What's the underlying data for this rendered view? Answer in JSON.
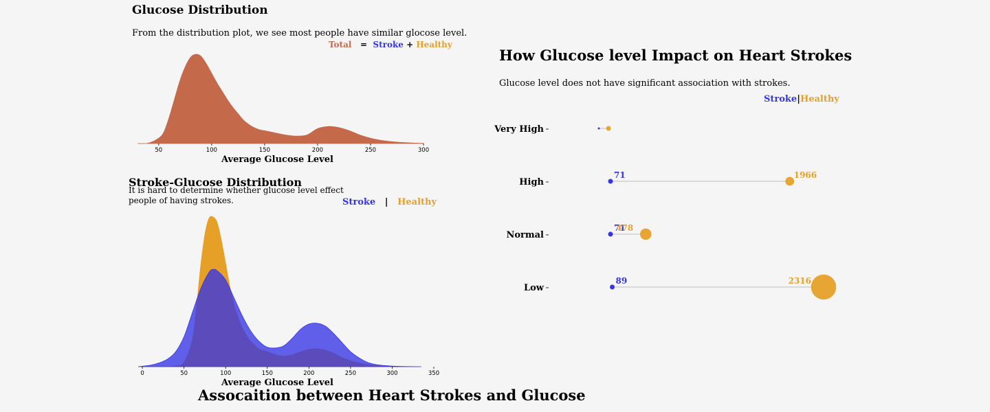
{
  "figure": {
    "suptitle": "Assocaition between Heart Strokes and Glucose"
  },
  "colors": {
    "background": "#f5f5f5",
    "total": "#c4694a",
    "stroke": "#3535e6",
    "healthy": "#e6a028",
    "connector": "#d0d0d0"
  },
  "chart_data": [
    {
      "type": "area",
      "title": "Glucose Distribution",
      "subtitle": "From the distribution plot, we see most people have similar glocose level.",
      "xlabel": "Average Glucose Level",
      "ylabel": "",
      "xlim": [
        30,
        300
      ],
      "xticks": [
        50,
        100,
        150,
        200,
        250,
        300
      ],
      "grid": false,
      "legend": {
        "placement": "top-right",
        "text": {
          "total": "Total",
          "eq": "=",
          "stroke": "Stroke",
          "plus": "+",
          "healthy": "Healthy"
        }
      },
      "series": [
        {
          "name": "Total",
          "color": "#c4694a",
          "x": [
            30,
            40,
            50,
            55,
            60,
            65,
            70,
            75,
            80,
            85,
            90,
            95,
            100,
            105,
            110,
            115,
            120,
            125,
            130,
            135,
            140,
            145,
            150,
            160,
            170,
            180,
            190,
            200,
            210,
            220,
            230,
            240,
            250,
            260,
            270,
            280,
            290,
            300
          ],
          "y": [
            0.0,
            0.3,
            5,
            11,
            25,
            42,
            59,
            72,
            81,
            84,
            82,
            75,
            66,
            57,
            49,
            41,
            34,
            28,
            22,
            18,
            15,
            13,
            12,
            10,
            8,
            7,
            8,
            14,
            16,
            15,
            12,
            8,
            5,
            3,
            1.8,
            1,
            0.5,
            0.2
          ]
        }
      ]
    },
    {
      "type": "area",
      "title": "Stroke-Glucose Distribution",
      "subtitle_lines": [
        "It is hard to determine whether glucose level effect",
        "people of having strokes."
      ],
      "xlabel": "Average Glucose Level",
      "ylabel": "",
      "xlim": [
        -5,
        350
      ],
      "xticks": [
        0,
        50,
        100,
        150,
        200,
        250,
        300,
        350
      ],
      "grid": false,
      "legend": {
        "placement": "top-right",
        "text": {
          "stroke": "Stroke",
          "sep": "|",
          "healthy": "Healthy"
        }
      },
      "series": [
        {
          "name": "Healthy",
          "color": "#e6a028",
          "x": [
            -5,
            20,
            40,
            50,
            60,
            65,
            70,
            75,
            80,
            85,
            90,
            95,
            100,
            105,
            110,
            115,
            120,
            125,
            130,
            140,
            150,
            160,
            170,
            180,
            190,
            200,
            210,
            220,
            230,
            240,
            250,
            260,
            270,
            280,
            290,
            300,
            310,
            320,
            335
          ],
          "y": [
            0,
            0,
            0.5,
            3,
            18,
            40,
            67,
            88,
            99,
            100,
            96,
            84,
            69,
            54,
            42,
            33,
            26,
            21,
            17,
            12,
            10,
            8,
            7,
            8,
            10,
            11.5,
            12,
            11,
            9,
            6,
            4,
            2.5,
            1.5,
            0.8,
            0.4,
            0.2,
            0.1,
            0,
            0
          ]
        },
        {
          "name": "Stroke",
          "color": "#3535e6",
          "x": [
            -5,
            0,
            10,
            20,
            30,
            40,
            50,
            60,
            70,
            80,
            85,
            90,
            100,
            110,
            120,
            130,
            140,
            150,
            160,
            170,
            180,
            190,
            200,
            210,
            220,
            230,
            240,
            250,
            260,
            270,
            280,
            290,
            300,
            320,
            335
          ],
          "y": [
            0,
            0.3,
            1,
            2.5,
            5,
            10,
            20,
            36,
            52,
            63,
            65,
            64,
            58,
            46,
            34,
            24,
            17,
            13,
            12.5,
            14,
            19,
            25,
            28.5,
            29,
            27,
            22,
            16,
            10,
            6,
            3,
            1.5,
            0.8,
            0.4,
            0.1,
            0
          ]
        }
      ]
    },
    {
      "type": "scatter",
      "title": "How Glucose level Impact on Heart Strokes",
      "subtitle": "Glucose level does not have significant association with strokes.",
      "legend": {
        "placement": "top-right",
        "text": {
          "stroke": "Stroke",
          "sep": "|",
          "healthy": "Healthy"
        }
      },
      "categories": [
        "Very High",
        "High",
        "Normal",
        "Low"
      ],
      "series": [
        {
          "name": "Stroke",
          "color": "#3535e6",
          "values": [
            0,
            71,
            71,
            89
          ],
          "labels": [
            "",
            "71",
            "71",
            "89"
          ]
        },
        {
          "name": "Healthy",
          "color": "#e6a028",
          "values": [
            15,
            1966,
            478,
            2316
          ],
          "labels": [
            "",
            "1966",
            "478",
            "2316"
          ]
        }
      ]
    }
  ]
}
